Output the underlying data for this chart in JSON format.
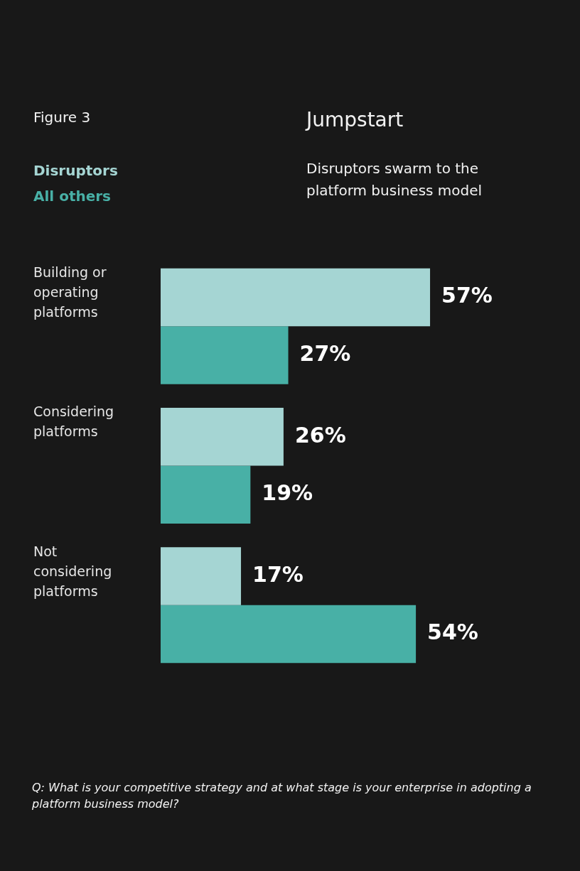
{
  "chart_data": {
    "type": "bar",
    "orientation": "horizontal",
    "title": "Jumpstart",
    "subtitle": "Disruptors swarm to the platform business model",
    "categories": [
      "Building or operating platforms",
      "Considering platforms",
      "Not considering platforms"
    ],
    "series": [
      {
        "name": "Disruptors",
        "color": "#a5d5d3",
        "values": [
          57,
          26,
          17
        ],
        "value_labels": [
          "57%",
          "26%",
          "17%"
        ]
      },
      {
        "name": "All others",
        "color": "#48b0a6",
        "values": [
          27,
          19,
          54
        ],
        "value_labels": [
          "27%",
          "19%",
          "54%"
        ]
      }
    ],
    "tick_labels": "y",
    "legend": "top left",
    "annotations": [
      "Figure 3",
      "Q: What is your competitive strategy and at what stage is your enterprise in adopting a platform business model?"
    ]
  }
}
